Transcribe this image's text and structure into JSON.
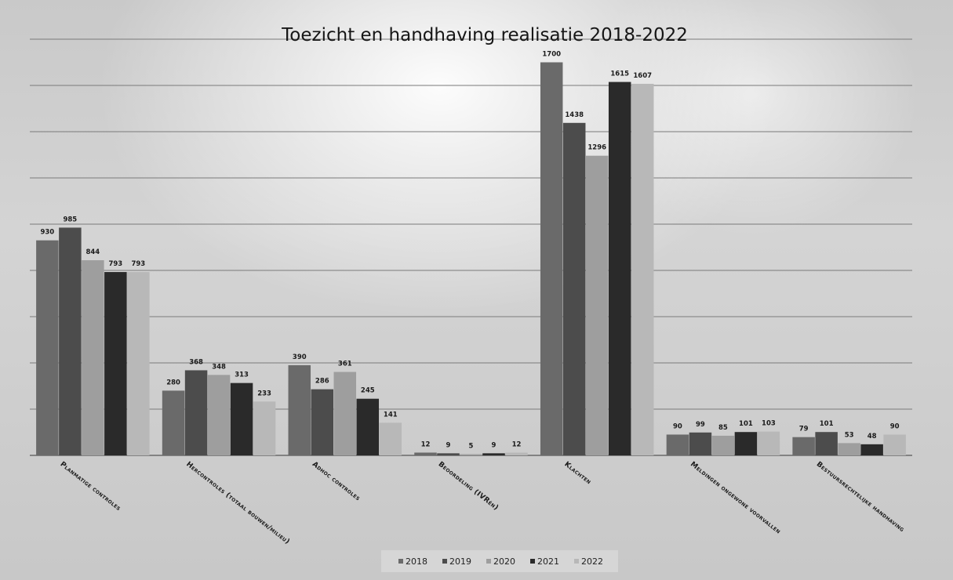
{
  "chart_data": {
    "type": "bar",
    "title": "Toezicht en handhaving realisatie 2018-2022",
    "categories": [
      "Planmatige controles",
      "Hercontroles (totaal bouwen/milieu)",
      "Adhoc controles",
      "Beoordeling (IVRén)",
      "Klachten",
      "Meldingen ongewone voorvallen",
      "Bestuursrechtelijke handhaving"
    ],
    "series": [
      {
        "name": "2018",
        "color": "#6a6a6a",
        "values": [
          930,
          280,
          390,
          12,
          1700,
          90,
          79
        ]
      },
      {
        "name": "2019",
        "color": "#4c4c4c",
        "values": [
          985,
          368,
          286,
          9,
          1438,
          99,
          101
        ]
      },
      {
        "name": "2020",
        "color": "#9e9e9e",
        "values": [
          844,
          348,
          361,
          5,
          1296,
          85,
          53
        ]
      },
      {
        "name": "2021",
        "color": "#2a2a2a",
        "values": [
          793,
          313,
          245,
          9,
          1615,
          101,
          48
        ]
      },
      {
        "name": "2022",
        "color": "#b8b8b8",
        "values": [
          793,
          233,
          141,
          12,
          1607,
          103,
          90
        ]
      }
    ],
    "ylim": [
      0,
      1800
    ],
    "grid": true,
    "legend_position": "bottom"
  }
}
